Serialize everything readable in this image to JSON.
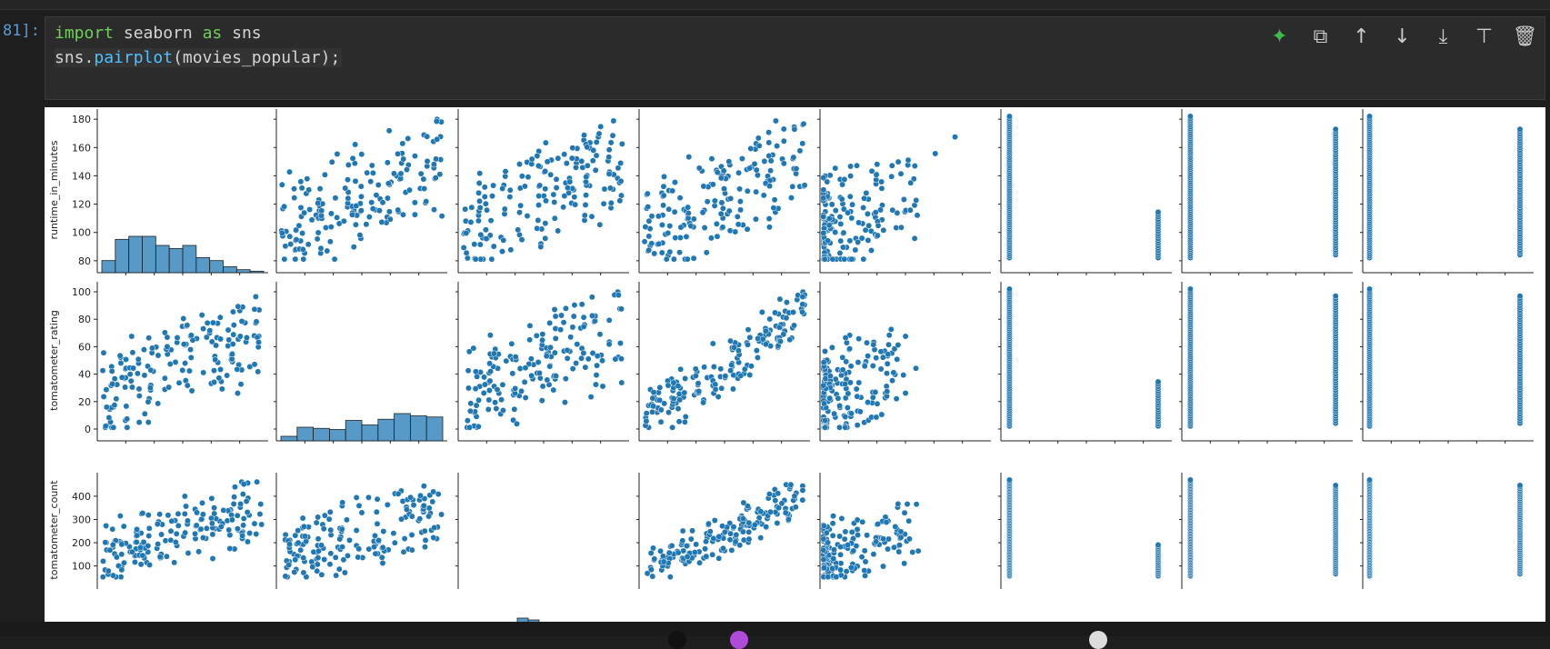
{
  "cell": {
    "prompt": "81]:",
    "line1": {
      "import": "import",
      "mod": " seaborn ",
      "as": "as",
      "alias": " sns"
    },
    "line2": {
      "obj": "sns.",
      "fn": "pairplot",
      "args": "(movies_popular);"
    }
  },
  "toolbar": [
    {
      "name": "ai-assist-icon",
      "glyph": "✦"
    },
    {
      "name": "copy-icon",
      "glyph": "⧉"
    },
    {
      "name": "move-up-icon",
      "glyph": "↑"
    },
    {
      "name": "move-down-icon",
      "glyph": "↓"
    },
    {
      "name": "insert-below-icon",
      "glyph": "⤓"
    },
    {
      "name": "split-cell-icon",
      "glyph": "⊤"
    },
    {
      "name": "delete-icon",
      "glyph": "🗑"
    }
  ],
  "chart_data": {
    "type": "scatter",
    "title": "",
    "row_labels": [
      "runtime_in_minutes",
      "tomatometer_rating",
      "tomatometer_count"
    ],
    "rows": [
      {
        "label": "runtime_in_minutes",
        "ylim": [
          78,
          182
        ],
        "ticks": [
          80,
          100,
          120,
          140,
          160,
          180
        ]
      },
      {
        "label": "tomatometer_rating",
        "ylim": [
          -2,
          102
        ],
        "ticks": [
          0,
          20,
          40,
          60,
          80,
          100
        ]
      },
      {
        "label": "tomatometer_count",
        "ylim": [
          40,
          470
        ],
        "ticks": [
          100,
          200,
          300,
          400
        ]
      }
    ],
    "diag_hist": {
      "runtime_in_minutes": [
        4,
        11,
        12,
        12,
        9,
        8,
        9,
        5,
        4,
        2,
        1,
        0.5
      ],
      "tomatometer_rating": [
        2,
        6,
        5.5,
        5,
        9,
        7,
        9.5,
        12,
        11,
        10.5
      ]
    },
    "color": "#1f77b4"
  }
}
